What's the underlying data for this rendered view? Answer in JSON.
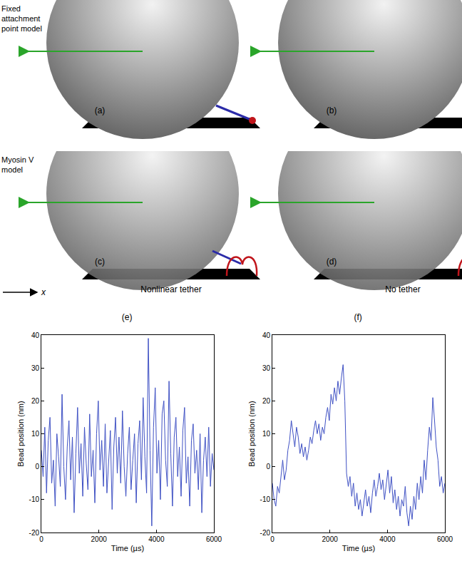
{
  "diagram": {
    "row_labels": [
      "Fixed attachment point model",
      "Myosin V model"
    ],
    "panel_letters": [
      "(a)",
      "(b)",
      "(c)",
      "(d)"
    ],
    "column_labels": [
      "Nonlinear tether",
      "No tether"
    ],
    "axis_label": "x"
  },
  "chart_data": [
    {
      "type": "line",
      "title": "(e)",
      "x_label": "Time (µs)",
      "y_label": "Bead position (nm)",
      "color": "#3f51c4",
      "x": [
        0,
        60,
        120,
        180,
        240,
        300,
        360,
        420,
        480,
        540,
        600,
        660,
        720,
        780,
        840,
        900,
        960,
        1020,
        1080,
        1140,
        1200,
        1260,
        1320,
        1380,
        1440,
        1500,
        1560,
        1620,
        1680,
        1740,
        1800,
        1860,
        1920,
        1980,
        2040,
        2100,
        2160,
        2220,
        2280,
        2340,
        2400,
        2460,
        2520,
        2580,
        2640,
        2700,
        2760,
        2820,
        2880,
        2940,
        3000,
        3060,
        3120,
        3180,
        3240,
        3300,
        3360,
        3420,
        3480,
        3540,
        3600,
        3660,
        3720,
        3780,
        3840,
        3900,
        3960,
        4020,
        4080,
        4140,
        4200,
        4260,
        4320,
        4380,
        4440,
        4500,
        4560,
        4620,
        4680,
        4740,
        4800,
        4860,
        4920,
        4980,
        5040,
        5100,
        5160,
        5220,
        5280,
        5340,
        5400,
        5460,
        5520,
        5580,
        5640,
        5700,
        5760,
        5820,
        5880,
        5940,
        6000
      ],
      "values": [
        5,
        -3,
        12,
        -8,
        8,
        15,
        -5,
        2,
        -12,
        10,
        3,
        -6,
        22,
        0,
        -10,
        6,
        14,
        -4,
        9,
        -14,
        4,
        18,
        -2,
        7,
        -9,
        12,
        1,
        -7,
        16,
        -3,
        5,
        -11,
        10,
        20,
        -1,
        8,
        -6,
        13,
        -8,
        3,
        11,
        -13,
        6,
        15,
        -2,
        9,
        -5,
        17,
        0,
        -9,
        4,
        12,
        -7,
        2,
        10,
        -11,
        7,
        14,
        -4,
        21,
        3,
        -8,
        39,
        5,
        -18,
        12,
        24,
        -2,
        8,
        -10,
        16,
        20,
        2,
        -6,
        26,
        4,
        -12,
        9,
        15,
        -3,
        6,
        -9,
        11,
        18,
        -5,
        3,
        -12,
        8,
        13,
        -2,
        5,
        -7,
        10,
        -14,
        2,
        9,
        -3,
        12,
        -6,
        4,
        -1
      ],
      "xlim": [
        0,
        6000
      ],
      "xticks": [
        0,
        2000,
        4000,
        6000
      ],
      "ylim": [
        -20,
        40
      ],
      "yticks": [
        -20,
        -10,
        0,
        10,
        20,
        30,
        40
      ]
    },
    {
      "type": "line",
      "title": "(f)",
      "x_label": "Time (µs)",
      "y_label": "Bead position (nm)",
      "color": "#3f51c4",
      "x": [
        0,
        60,
        120,
        180,
        240,
        300,
        360,
        420,
        480,
        540,
        600,
        660,
        720,
        780,
        840,
        900,
        960,
        1020,
        1080,
        1140,
        1200,
        1260,
        1320,
        1380,
        1440,
        1500,
        1560,
        1620,
        1680,
        1740,
        1800,
        1860,
        1920,
        1980,
        2040,
        2100,
        2160,
        2220,
        2280,
        2340,
        2400,
        2460,
        2520,
        2580,
        2640,
        2700,
        2760,
        2820,
        2880,
        2940,
        3000,
        3060,
        3120,
        3180,
        3240,
        3300,
        3360,
        3420,
        3480,
        3540,
        3600,
        3660,
        3720,
        3780,
        3840,
        3900,
        3960,
        4020,
        4080,
        4140,
        4200,
        4260,
        4320,
        4380,
        4440,
        4500,
        4560,
        4620,
        4680,
        4740,
        4800,
        4860,
        4920,
        4980,
        5040,
        5100,
        5160,
        5220,
        5280,
        5340,
        5400,
        5460,
        5520,
        5580,
        5640,
        5700,
        5760,
        5820,
        5880,
        5940,
        6000
      ],
      "values": [
        -5,
        -10,
        -12,
        -6,
        -8,
        -3,
        2,
        -4,
        -1,
        5,
        8,
        14,
        10,
        6,
        12,
        9,
        4,
        7,
        3,
        6,
        2,
        5,
        9,
        7,
        11,
        14,
        10,
        13,
        8,
        12,
        10,
        15,
        18,
        14,
        22,
        19,
        24,
        20,
        26,
        22,
        27,
        31,
        20,
        -2,
        -6,
        -3,
        -9,
        -5,
        -12,
        -8,
        -13,
        -10,
        -15,
        -11,
        -7,
        -12,
        -9,
        -14,
        -8,
        -4,
        -9,
        -6,
        -2,
        -7,
        -4,
        -10,
        -6,
        -1,
        -8,
        -3,
        -11,
        -7,
        -13,
        -9,
        -15,
        -10,
        -12,
        -6,
        -14,
        -18,
        -12,
        -16,
        -9,
        -13,
        -5,
        -10,
        -3,
        -8,
        2,
        -4,
        5,
        12,
        8,
        21,
        14,
        6,
        2,
        -6,
        -3,
        -8,
        -5
      ],
      "xlim": [
        0,
        6000
      ],
      "xticks": [
        0,
        2000,
        4000,
        6000
      ],
      "ylim": [
        -20,
        40
      ],
      "yticks": [
        -20,
        -10,
        0,
        10,
        20,
        30,
        40
      ]
    }
  ]
}
